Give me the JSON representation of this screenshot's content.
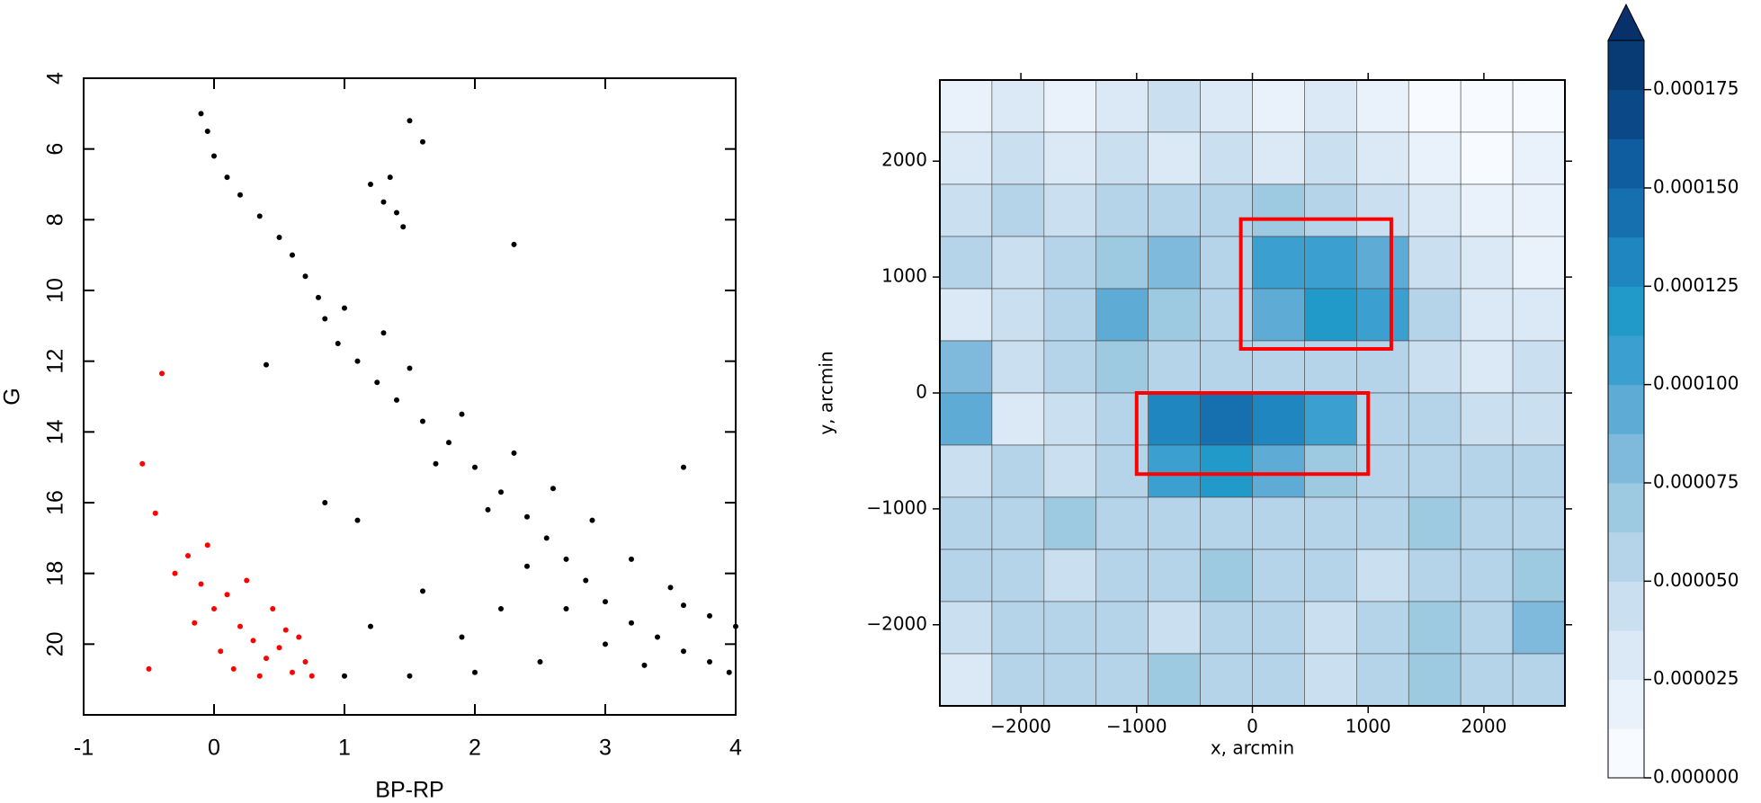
{
  "chart_data": [
    {
      "type": "scatter",
      "xlabel": "BP-RP",
      "ylabel": "G",
      "xlim": [
        -1,
        4
      ],
      "ylim": [
        22,
        4
      ],
      "xticks": [
        -1,
        0,
        1,
        2,
        3,
        4
      ],
      "yticks": [
        4,
        6,
        8,
        10,
        12,
        14,
        16,
        18,
        20
      ],
      "series": [
        {
          "color": "#000000",
          "x": [
            -0.1,
            -0.05,
            0.0,
            0.1,
            0.2,
            0.35,
            0.5,
            0.6,
            0.7,
            0.8,
            0.85,
            0.95,
            1.1,
            1.25,
            1.4,
            1.6,
            1.8,
            2.0,
            2.2,
            2.4,
            2.55,
            2.7,
            2.85,
            3.0,
            3.2,
            3.4,
            3.6,
            3.8,
            3.95,
            1.0,
            1.3,
            1.5,
            1.9,
            2.3,
            2.6,
            2.9,
            3.2,
            3.5,
            3.8,
            1.7,
            2.1,
            2.4,
            2.7,
            3.0,
            2.5,
            2.0,
            1.5,
            1.0,
            1.2,
            1.6,
            1.9,
            2.2,
            3.3,
            3.6,
            4.0,
            1.2,
            1.3,
            1.35,
            1.4,
            1.45,
            1.5,
            1.6,
            2.3,
            0.4,
            3.6,
            0.85,
            1.1
          ],
          "y": [
            5.0,
            5.5,
            6.2,
            6.8,
            7.3,
            7.9,
            8.5,
            9.0,
            9.6,
            10.2,
            10.8,
            11.5,
            12.0,
            12.6,
            13.1,
            13.7,
            14.3,
            15.0,
            15.7,
            16.4,
            17.0,
            17.6,
            18.2,
            18.8,
            19.4,
            19.8,
            20.2,
            20.5,
            20.8,
            10.5,
            11.2,
            12.2,
            13.5,
            14.6,
            15.6,
            16.5,
            17.6,
            18.4,
            19.2,
            14.9,
            16.2,
            17.8,
            19.0,
            20.0,
            20.5,
            20.8,
            20.9,
            20.9,
            19.5,
            18.5,
            19.8,
            19.0,
            20.6,
            18.9,
            19.5,
            7.0,
            7.5,
            6.8,
            7.8,
            8.2,
            5.2,
            5.8,
            8.7,
            12.1,
            15.0,
            16.0,
            16.5
          ]
        },
        {
          "color": "#ff0000",
          "x": [
            -0.55,
            -0.4,
            -0.45,
            -0.5,
            -0.3,
            -0.2,
            -0.1,
            0.0,
            0.1,
            0.2,
            0.3,
            0.4,
            0.5,
            0.6,
            0.7,
            0.75,
            0.05,
            0.25,
            0.45,
            -0.15,
            0.15,
            0.35,
            0.55,
            0.65,
            -0.05
          ],
          "y": [
            14.9,
            12.35,
            16.3,
            20.7,
            18.0,
            17.5,
            18.3,
            19.0,
            18.6,
            19.5,
            19.9,
            20.4,
            20.1,
            20.8,
            20.5,
            20.9,
            20.2,
            18.2,
            19.0,
            19.4,
            20.7,
            20.9,
            19.6,
            19.8,
            17.2
          ]
        }
      ]
    },
    {
      "type": "heatmap",
      "xlabel": "x, arcmin",
      "ylabel": "y, arcmin",
      "xlim": [
        -2700,
        2700
      ],
      "ylim": [
        -2700,
        2700
      ],
      "xticks": [
        {
          "value": -2000,
          "label": "−2000"
        },
        {
          "value": -1000,
          "label": "−1000"
        },
        0,
        1000,
        2000
      ],
      "yticks": [
        {
          "value": -2000,
          "label": "−2000"
        },
        {
          "value": -1000,
          "label": "−1000"
        },
        0,
        1000,
        2000
      ],
      "x": [
        -2475,
        -2025,
        -1575,
        -1125,
        -675,
        -225,
        225,
        675,
        1125,
        1575,
        2025,
        2475
      ],
      "y": [
        2475,
        2025,
        1575,
        1125,
        675,
        225,
        -225,
        -675,
        -1125,
        -1575,
        -2025,
        -2475
      ],
      "z": [
        [
          2e-05,
          3e-05,
          2e-05,
          3e-05,
          4e-05,
          3e-05,
          2e-05,
          3e-05,
          2e-05,
          1e-05,
          1e-05,
          1e-05
        ],
        [
          3e-05,
          4e-05,
          3e-05,
          4e-05,
          3e-05,
          4e-05,
          3e-05,
          4e-05,
          3e-05,
          2e-05,
          1e-05,
          2e-05
        ],
        [
          4e-05,
          5e-05,
          4e-05,
          5e-05,
          6e-05,
          5e-05,
          7e-05,
          6e-05,
          4e-05,
          3e-05,
          2e-05,
          2e-05
        ],
        [
          5e-05,
          4e-05,
          6e-05,
          7e-05,
          8e-05,
          6e-05,
          0.0001,
          0.00011,
          9e-05,
          4e-05,
          3e-05,
          2e-05
        ],
        [
          3e-05,
          4e-05,
          5e-05,
          9e-05,
          7e-05,
          5e-05,
          9e-05,
          0.00012,
          0.00011,
          5e-05,
          3e-05,
          3e-05
        ],
        [
          8e-05,
          4e-05,
          5e-05,
          7e-05,
          6e-05,
          5e-05,
          6e-05,
          5e-05,
          6e-05,
          4e-05,
          3e-05,
          4e-05
        ],
        [
          9e-05,
          3e-05,
          4e-05,
          5e-05,
          0.00013,
          0.00014,
          0.00013,
          0.00011,
          6e-05,
          5e-05,
          4e-05,
          4e-05
        ],
        [
          4e-05,
          5e-05,
          4e-05,
          6e-05,
          0.0001,
          0.00012,
          9e-05,
          7e-05,
          5e-05,
          6e-05,
          5e-05,
          5e-05
        ],
        [
          5e-05,
          6e-05,
          7e-05,
          5e-05,
          6e-05,
          5e-05,
          6e-05,
          5e-05,
          6e-05,
          7e-05,
          6e-05,
          5e-05
        ],
        [
          6e-05,
          5e-05,
          4e-05,
          6e-05,
          5e-05,
          7e-05,
          6e-05,
          5e-05,
          4e-05,
          5e-05,
          6e-05,
          7e-05
        ],
        [
          4e-05,
          5e-05,
          6e-05,
          5e-05,
          4e-05,
          5e-05,
          6e-05,
          4e-05,
          6e-05,
          7e-05,
          6e-05,
          8e-05
        ],
        [
          3e-05,
          6e-05,
          5e-05,
          6e-05,
          7e-05,
          5e-05,
          6e-05,
          4e-05,
          5e-05,
          7e-05,
          5e-05,
          6e-05
        ]
      ],
      "boxes": [
        {
          "x": [
            -100,
            1200
          ],
          "y": [
            380,
            1500
          ],
          "color": "#ff0000"
        },
        {
          "x": [
            -1000,
            1000
          ],
          "y": [
            -700,
            0
          ],
          "color": "#ff0000"
        }
      ],
      "colorbar": {
        "lim": [
          0,
          0.0001875
        ],
        "colors": [
          "#f7fbff",
          "#e9f2fa",
          "#dbe9f6",
          "#cadff0",
          "#b5d4ea",
          "#9ecae1",
          "#7fbadc",
          "#5eacd6",
          "#3b9fd0",
          "#229ac9",
          "#1f86c0",
          "#1670b0",
          "#0f5c9e",
          "#0a4887",
          "#083a74"
        ],
        "extend_color": "#08306b",
        "ticks": [
          {
            "value": 0,
            "label": "0.000000"
          },
          {
            "value": 2.5e-05,
            "label": "0.000025"
          },
          {
            "value": 5e-05,
            "label": "0.000050"
          },
          {
            "value": 7.5e-05,
            "label": "0.000075"
          },
          {
            "value": 0.0001,
            "label": "0.000100"
          },
          {
            "value": 0.000125,
            "label": "0.000125"
          },
          {
            "value": 0.00015,
            "label": "0.000150"
          },
          {
            "value": 0.000175,
            "label": "0.000175"
          }
        ]
      }
    }
  ]
}
